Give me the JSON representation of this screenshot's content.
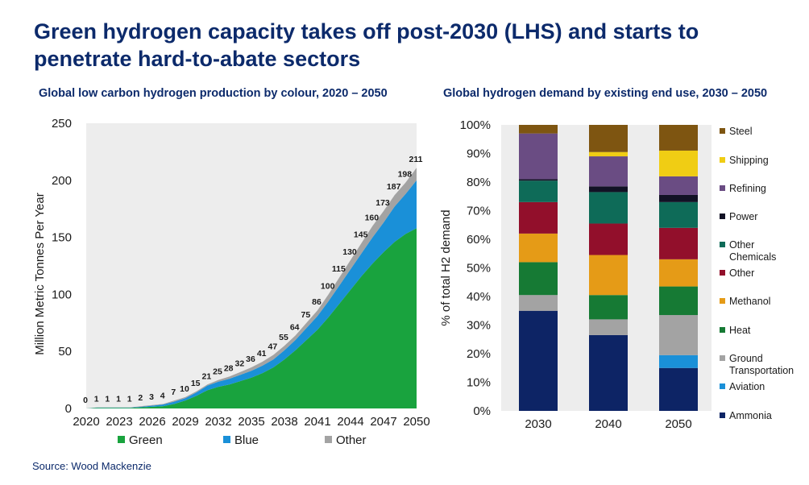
{
  "title": "Green hydrogen capacity takes off post-2030 (LHS) and starts to penetrate hard-to-abate sectors",
  "source": "Source: Wood Mackenzie",
  "colors": {
    "green": "#19a33e",
    "blue": "#1a90d8",
    "other": "#a3a3a3",
    "plot_bg": "#ededed"
  },
  "chart_data": [
    {
      "type": "area",
      "title": "Global low carbon hydrogen production by colour, 2020 – 2050",
      "xlabel": "",
      "ylabel": "Million Metric Tonnes  Per Year",
      "ylim": [
        0,
        250
      ],
      "yticks": [
        "0",
        "50",
        "100",
        "150",
        "200",
        "250"
      ],
      "x": [
        2020,
        2021,
        2022,
        2023,
        2024,
        2025,
        2026,
        2027,
        2028,
        2029,
        2030,
        2031,
        2032,
        2033,
        2034,
        2035,
        2036,
        2037,
        2038,
        2039,
        2040,
        2041,
        2042,
        2043,
        2044,
        2045,
        2046,
        2047,
        2048,
        2049,
        2050
      ],
      "xticks": [
        "2020",
        "2023",
        "2026",
        "2029",
        "2032",
        "2035",
        "2038",
        "2041",
        "2044",
        "2047",
        "2050"
      ],
      "totals": [
        "0",
        "1",
        "1",
        "1",
        "1",
        "2",
        "3",
        "4",
        "7",
        "10",
        "15",
        "21",
        "25",
        "28",
        "32",
        "36",
        "41",
        "47",
        "55",
        "64",
        "75",
        "86",
        "100",
        "115",
        "130",
        "145",
        "160",
        "173",
        "187",
        "198",
        "211"
      ],
      "series": [
        {
          "name": "Green",
          "values": [
            0,
            0.5,
            0.5,
            0.5,
            0.5,
            1,
            1.5,
            2,
            4,
            7,
            11,
            16,
            19,
            21,
            24,
            27,
            31,
            36,
            43,
            51,
            60,
            69,
            80,
            92,
            104,
            116,
            127,
            137,
            146,
            153,
            158
          ]
        },
        {
          "name": "Blue",
          "values": [
            0,
            0.3,
            0.3,
            0.3,
            0.3,
            0.5,
            1,
            1.5,
            2,
            2,
            3,
            4,
            4.5,
            5,
            5.5,
            6,
            6.5,
            7,
            8,
            9,
            10.5,
            12,
            14,
            16,
            18,
            20,
            23,
            26,
            31,
            35,
            42
          ]
        },
        {
          "name": "Other",
          "values": [
            0,
            0.2,
            0.2,
            0.2,
            0.2,
            0.5,
            0.5,
            0.5,
            1,
            1,
            1,
            1,
            1.5,
            2,
            2.5,
            3,
            3.5,
            4,
            4,
            4,
            4.5,
            5,
            6,
            7,
            8,
            9,
            10,
            10,
            10,
            10,
            11
          ]
        }
      ],
      "legend": {
        "position": "bottom"
      }
    },
    {
      "type": "bar",
      "stacked": true,
      "title": "Global hydrogen demand by existing end use, 2030 – 2050",
      "xlabel": "",
      "ylabel": "% of total H2 demand",
      "ylim": [
        0,
        100
      ],
      "yticks": [
        "0%",
        "10%",
        "20%",
        "30%",
        "40%",
        "50%",
        "60%",
        "70%",
        "80%",
        "90%",
        "100%"
      ],
      "categories": [
        "2030",
        "2040",
        "2050"
      ],
      "series": [
        {
          "name": "Ammonia",
          "color": "#0d2465",
          "values": [
            35,
            26.5,
            15
          ]
        },
        {
          "name": "Aviation",
          "color": "#1a90d8",
          "values": [
            0,
            0,
            4.5
          ]
        },
        {
          "name": "Ground Transportation",
          "color": "#a3a3a3",
          "values": [
            5.5,
            5.5,
            14
          ]
        },
        {
          "name": "Heat",
          "color": "#167a34",
          "values": [
            11.5,
            8.5,
            10
          ]
        },
        {
          "name": "Methanol",
          "color": "#e59b17",
          "values": [
            10,
            14,
            9.5
          ]
        },
        {
          "name": "Other",
          "color": "#920f2b",
          "values": [
            11,
            11,
            11
          ]
        },
        {
          "name": "Other Chemicals",
          "color": "#0e6b58",
          "values": [
            7.5,
            11,
            9
          ]
        },
        {
          "name": "Power",
          "color": "#121225",
          "values": [
            0.5,
            2,
            2.5
          ]
        },
        {
          "name": "Refining",
          "color": "#6a4c83",
          "values": [
            16,
            10.5,
            6.5
          ]
        },
        {
          "name": "Shipping",
          "color": "#f0cd14",
          "values": [
            0,
            1.5,
            9
          ]
        },
        {
          "name": "Steel",
          "color": "#7e5511",
          "values": [
            3,
            9.5,
            9
          ]
        }
      ],
      "legend": {
        "position": "right"
      }
    }
  ]
}
